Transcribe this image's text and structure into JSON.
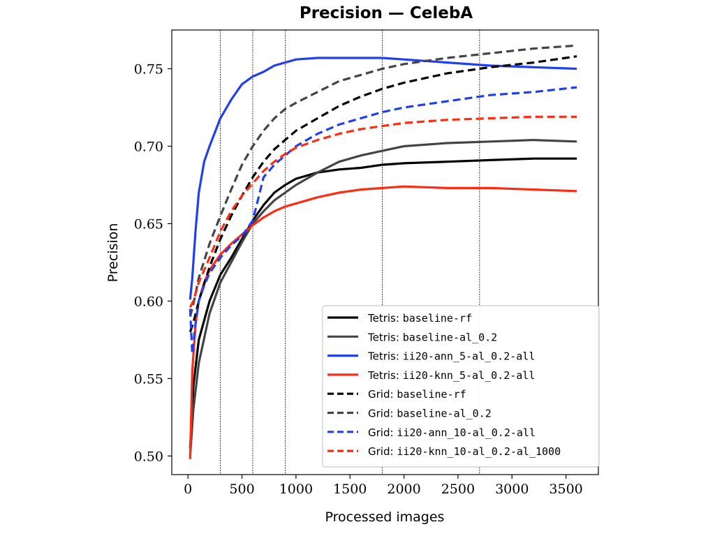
{
  "chart_data": {
    "type": "line",
    "title": "Precision — CelebA",
    "xlabel": "Processed images",
    "ylabel": "Precision",
    "xlim": [
      -150,
      3800
    ],
    "ylim": [
      0.488,
      0.775
    ],
    "xticks": [
      0,
      500,
      1000,
      1500,
      2000,
      2500,
      3000,
      3500
    ],
    "xtick_labels": [
      "0",
      "500",
      "1000",
      "1500",
      "2000",
      "2500",
      "3000",
      "3500"
    ],
    "yticks": [
      0.5,
      0.55,
      0.6,
      0.65,
      0.7,
      0.75
    ],
    "ytick_labels": [
      "0.50",
      "0.55",
      "0.60",
      "0.65",
      "0.70",
      "0.75"
    ],
    "vlines": [
      300,
      600,
      900,
      1800,
      2700
    ],
    "grid": false,
    "legend_position": "lower-right",
    "series": [
      {
        "name_prefix": "Tetris:",
        "name_code": "baseline-rf",
        "color": "#000000",
        "dashed": false,
        "x": [
          20,
          50,
          100,
          200,
          300,
          400,
          500,
          600,
          700,
          800,
          900,
          1000,
          1200,
          1400,
          1600,
          1800,
          2000,
          2400,
          2800,
          3200,
          3600
        ],
        "y": [
          0.505,
          0.545,
          0.575,
          0.6,
          0.617,
          0.628,
          0.64,
          0.652,
          0.662,
          0.67,
          0.675,
          0.679,
          0.683,
          0.685,
          0.686,
          0.688,
          0.689,
          0.69,
          0.691,
          0.692,
          0.692
        ]
      },
      {
        "name_prefix": "Tetris:",
        "name_code": "baseline-al_0.2",
        "color": "#444444",
        "dashed": false,
        "x": [
          20,
          50,
          100,
          200,
          300,
          400,
          500,
          600,
          700,
          800,
          900,
          1000,
          1200,
          1400,
          1600,
          1800,
          2000,
          2400,
          2800,
          3200,
          3600
        ],
        "y": [
          0.5,
          0.53,
          0.56,
          0.592,
          0.612,
          0.625,
          0.638,
          0.65,
          0.658,
          0.665,
          0.67,
          0.675,
          0.683,
          0.69,
          0.694,
          0.697,
          0.7,
          0.702,
          0.703,
          0.704,
          0.703
        ]
      },
      {
        "name_prefix": "Tetris:",
        "name_code": "ii20-ann_5-al_0.2-all",
        "color": "#1f3ff0",
        "dashed": false,
        "x": [
          20,
          40,
          70,
          100,
          150,
          200,
          300,
          400,
          500,
          600,
          700,
          800,
          900,
          1000,
          1200,
          1400,
          1600,
          1800,
          2000,
          2400,
          2800,
          3200,
          3600
        ],
        "y": [
          0.601,
          0.615,
          0.645,
          0.67,
          0.69,
          0.7,
          0.718,
          0.73,
          0.74,
          0.745,
          0.748,
          0.752,
          0.754,
          0.756,
          0.757,
          0.757,
          0.757,
          0.757,
          0.756,
          0.754,
          0.752,
          0.751,
          0.75
        ]
      },
      {
        "name_prefix": "Tetris:",
        "name_code": "ii20-knn_5-al_0.2-all",
        "color": "#ff2a12",
        "dashed": false,
        "x": [
          20,
          40,
          70,
          100,
          150,
          200,
          300,
          400,
          500,
          600,
          700,
          800,
          900,
          1000,
          1200,
          1400,
          1600,
          1800,
          2000,
          2400,
          2800,
          3200,
          3600
        ],
        "y": [
          0.498,
          0.555,
          0.585,
          0.6,
          0.612,
          0.62,
          0.63,
          0.637,
          0.643,
          0.649,
          0.654,
          0.658,
          0.661,
          0.663,
          0.667,
          0.67,
          0.672,
          0.673,
          0.674,
          0.673,
          0.673,
          0.672,
          0.671
        ]
      },
      {
        "name_prefix": "Grid:",
        "name_code": "baseline-rf",
        "color": "#000000",
        "dashed": true,
        "x": [
          20,
          50,
          100,
          200,
          300,
          400,
          500,
          600,
          700,
          800,
          900,
          1000,
          1200,
          1400,
          1600,
          1800,
          2000,
          2400,
          2800,
          3200,
          3600
        ],
        "y": [
          0.58,
          0.586,
          0.6,
          0.622,
          0.64,
          0.655,
          0.668,
          0.68,
          0.69,
          0.698,
          0.704,
          0.71,
          0.718,
          0.726,
          0.732,
          0.737,
          0.741,
          0.747,
          0.751,
          0.754,
          0.758
        ]
      },
      {
        "name_prefix": "Grid:",
        "name_code": "baseline-al_0.2",
        "color": "#444444",
        "dashed": true,
        "x": [
          20,
          50,
          100,
          200,
          300,
          400,
          500,
          600,
          700,
          800,
          900,
          1000,
          1200,
          1400,
          1600,
          1800,
          2000,
          2400,
          2800,
          3200,
          3600
        ],
        "y": [
          0.59,
          0.598,
          0.615,
          0.637,
          0.655,
          0.672,
          0.688,
          0.7,
          0.71,
          0.718,
          0.724,
          0.728,
          0.735,
          0.742,
          0.746,
          0.75,
          0.753,
          0.757,
          0.76,
          0.763,
          0.765
        ]
      },
      {
        "name_prefix": "Grid:",
        "name_code": "ii20-ann_10-al_0.2-all",
        "color": "#1f3ff0",
        "dashed": true,
        "x": [
          20,
          40,
          70,
          100,
          150,
          200,
          300,
          400,
          500,
          600,
          700,
          800,
          900,
          1000,
          1200,
          1400,
          1600,
          1800,
          2000,
          2400,
          2800,
          3200,
          3600
        ],
        "y": [
          0.595,
          0.566,
          0.585,
          0.6,
          0.61,
          0.618,
          0.628,
          0.636,
          0.642,
          0.652,
          0.68,
          0.688,
          0.694,
          0.7,
          0.708,
          0.714,
          0.718,
          0.722,
          0.725,
          0.729,
          0.733,
          0.735,
          0.738
        ]
      },
      {
        "name_prefix": "Grid:",
        "name_code": "ii20-knn_10-al_0.2-al_1000",
        "color": "#ff2a12",
        "dashed": true,
        "x": [
          20,
          50,
          100,
          200,
          300,
          400,
          500,
          600,
          700,
          800,
          900,
          1000,
          1200,
          1400,
          1600,
          1800,
          2000,
          2400,
          2800,
          3200,
          3600
        ],
        "y": [
          0.596,
          0.6,
          0.612,
          0.628,
          0.645,
          0.658,
          0.668,
          0.676,
          0.684,
          0.69,
          0.695,
          0.699,
          0.704,
          0.708,
          0.711,
          0.713,
          0.715,
          0.717,
          0.718,
          0.719,
          0.719
        ]
      }
    ]
  }
}
